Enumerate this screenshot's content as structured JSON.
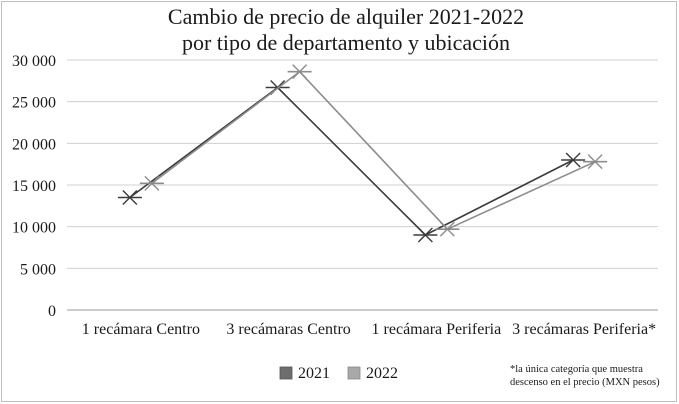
{
  "chart_data": {
    "type": "line",
    "title_lines": [
      "Cambio de precio de alquiler 2021-2022",
      "por tipo de departamento y ubicación"
    ],
    "categories": [
      "1 recámara Centro",
      "3 recámaras Centro",
      "1 recámara Periferia",
      "3 recámaras Periferia*"
    ],
    "y_ticks": [
      "30 000",
      "25 000",
      "20 000",
      "15 000",
      "10 000",
      "5 000",
      "0"
    ],
    "ylim": [
      0,
      30000
    ],
    "grid": true,
    "legend_position": "bottom",
    "series": [
      {
        "name": "2021",
        "values": [
          13500,
          26700,
          9000,
          18000
        ],
        "color": "#3c3c3c"
      },
      {
        "name": "2022",
        "values": [
          15200,
          28600,
          9700,
          17800
        ],
        "color": "#8c8c8c"
      }
    ],
    "annotation_lines": [
      "*la única categoría que muestra",
      "descenso en el precio (MXN pesos)"
    ]
  }
}
